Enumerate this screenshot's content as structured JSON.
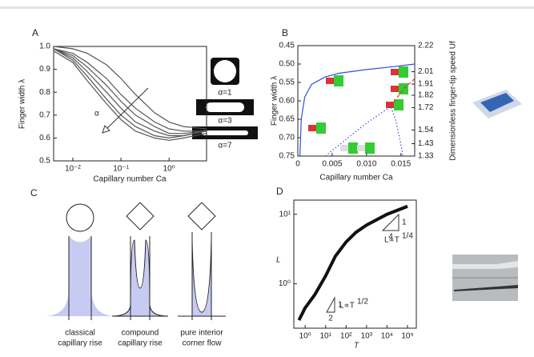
{
  "chart_data": [
    {
      "type": "line",
      "panel": "A",
      "xlabel": "Capillary number Ca",
      "ylabel": "Finger width λ",
      "annotation": "α",
      "xlog": true,
      "xlim": [
        0.004,
        6
      ],
      "ylim": [
        0.5,
        1.0
      ],
      "xticks": [
        {
          "value": 0.01,
          "label": "10⁻²"
        },
        {
          "value": 0.1,
          "label": "10⁻¹"
        },
        {
          "value": 1,
          "label": "10⁰"
        }
      ],
      "yticks": [
        0.5,
        0.6,
        0.7,
        0.8,
        0.9,
        {
          "value": 1.0,
          "label": "1.0"
        }
      ],
      "x": [
        0.004,
        0.01,
        0.02,
        0.05,
        0.1,
        0.2,
        0.5,
        1,
        2,
        6
      ],
      "series": [
        {
          "color": "#555555",
          "values": [
            1.0,
            0.99,
            0.97,
            0.92,
            0.86,
            0.79,
            0.71,
            0.67,
            0.65,
            0.64
          ]
        },
        {
          "color": "#555555",
          "values": [
            0.99,
            0.97,
            0.93,
            0.86,
            0.79,
            0.73,
            0.67,
            0.64,
            0.63,
            0.63
          ]
        },
        {
          "color": "#555555",
          "values": [
            0.99,
            0.96,
            0.91,
            0.83,
            0.76,
            0.7,
            0.65,
            0.62,
            0.62,
            0.63
          ]
        },
        {
          "color": "#555555",
          "values": [
            0.99,
            0.95,
            0.89,
            0.8,
            0.73,
            0.67,
            0.63,
            0.61,
            0.61,
            0.63
          ]
        },
        {
          "color": "#555555",
          "values": [
            0.99,
            0.94,
            0.87,
            0.77,
            0.7,
            0.65,
            0.61,
            0.6,
            0.61,
            0.63
          ]
        },
        {
          "color": "#555555",
          "values": [
            0.98,
            0.93,
            0.85,
            0.75,
            0.68,
            0.63,
            0.6,
            0.59,
            0.6,
            0.62
          ]
        }
      ]
    },
    {
      "type": "line",
      "panel": "B",
      "xlabel": "Capillary number Ca",
      "ylabel": "Finger width λ",
      "y2label": "Dimensionless finger-tip speed Uf",
      "xlim": [
        0,
        0.017
      ],
      "ylim": [
        0.75,
        0.45
      ],
      "y2lim": [
        1.33,
        2.22
      ],
      "xticks": [
        0,
        0.005,
        {
          "value": 0.01,
          "label": "0.010"
        },
        0.015
      ],
      "yticks": [
        0.45,
        {
          "value": 0.5,
          "label": "0.50"
        },
        0.55,
        {
          "value": 0.6,
          "label": "0.60"
        },
        0.65,
        {
          "value": 0.7,
          "label": "0.70"
        },
        0.75
      ],
      "y2ticks": [
        2.22,
        2.01,
        1.91,
        1.82,
        1.72,
        1.54,
        1.43,
        1.33
      ],
      "series": [
        {
          "color": "#2f4fe0",
          "style": "solid",
          "x": [
            0.0003,
            0.0005,
            0.001,
            0.002,
            0.004,
            0.006,
            0.01,
            0.014,
            0.017
          ],
          "values": [
            0.75,
            0.65,
            0.59,
            0.555,
            0.535,
            0.525,
            0.515,
            0.507,
            0.5
          ]
        },
        {
          "color": "#2f4fe0",
          "style": "dotted",
          "x": [
            0.004,
            0.006,
            0.008,
            0.01,
            0.012,
            0.0135,
            0.0142,
            0.0148,
            0.0153
          ],
          "values": [
            0.75,
            0.72,
            0.69,
            0.66,
            0.635,
            0.615,
            0.65,
            0.7,
            0.75
          ]
        },
        {
          "color": "#e03030",
          "style": "dashed",
          "x": [
            0.0135,
            0.0145,
            0.0155,
            0.017
          ],
          "values": [
            0.615,
            0.59,
            0.565,
            0.54
          ]
        }
      ]
    },
    {
      "type": "line",
      "panel": "D",
      "xlabel": "T",
      "ylabel": "L",
      "xlog": true,
      "ylog": true,
      "xlim": [
        0.28,
        270000
      ],
      "ylim": [
        0.23,
        16
      ],
      "xticks": [
        {
          "value": 1,
          "label": "10⁰"
        },
        {
          "value": 10,
          "label": "10¹"
        },
        {
          "value": 100,
          "label": "10²"
        },
        {
          "value": 1000,
          "label": "10³"
        },
        {
          "value": 10000,
          "label": "10⁴"
        },
        {
          "value": 100000,
          "label": "10⁵"
        }
      ],
      "yticks": [
        {
          "value": 1,
          "label": "10⁰"
        },
        {
          "value": 10,
          "label": "10¹"
        }
      ],
      "x": [
        0.5,
        1,
        3,
        10,
        30,
        100,
        300,
        1000,
        10000,
        100000
      ],
      "series": [
        {
          "color": "#111111",
          "values": [
            0.3,
            0.45,
            0.7,
            1.3,
            2.5,
            4,
            5.5,
            7,
            10,
            13
          ]
        }
      ],
      "slopes": [
        {
          "text": "L∝T",
          "sup": "1/2",
          "rise": "1",
          "run": "2"
        },
        {
          "text": "L∝T",
          "sup": "1/4",
          "rise": "1",
          "run": "4"
        }
      ]
    }
  ],
  "inset_a": {
    "labels": [
      "α=1",
      "α=3",
      "α=7"
    ]
  },
  "panel_c": {
    "panel": "C",
    "captions": [
      [
        "classical",
        "capillary rise"
      ],
      [
        "compound",
        "capillary rise"
      ],
      [
        "pure interior",
        "corner flow"
      ]
    ]
  }
}
